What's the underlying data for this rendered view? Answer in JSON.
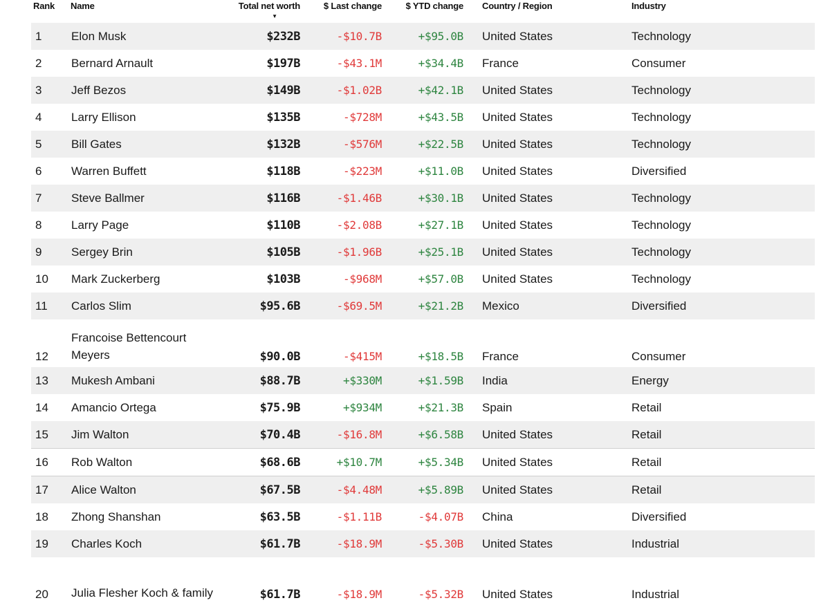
{
  "header": {
    "rank": "Rank",
    "name": "Name",
    "net_worth": "Total net worth",
    "sort_indicator": "▼",
    "last_change": "$ Last change",
    "ytd_change": "$ YTD change",
    "country": "Country / Region",
    "industry": "Industry"
  },
  "colors": {
    "negative": "#e03a3a",
    "positive": "#2e8540",
    "stripe": "#efefef"
  },
  "rows": [
    {
      "rank": "1",
      "name": "Elon Musk",
      "net_worth": "$232B",
      "last_change": "-$10.7B",
      "ytd_change": "+$95.0B",
      "country": "United States",
      "industry": "Technology"
    },
    {
      "rank": "2",
      "name": "Bernard Arnault",
      "net_worth": "$197B",
      "last_change": "-$43.1M",
      "ytd_change": "+$34.4B",
      "country": "France",
      "industry": "Consumer"
    },
    {
      "rank": "3",
      "name": "Jeff Bezos",
      "net_worth": "$149B",
      "last_change": "-$1.02B",
      "ytd_change": "+$42.1B",
      "country": "United States",
      "industry": "Technology"
    },
    {
      "rank": "4",
      "name": "Larry Ellison",
      "net_worth": "$135B",
      "last_change": "-$728M",
      "ytd_change": "+$43.5B",
      "country": "United States",
      "industry": "Technology"
    },
    {
      "rank": "5",
      "name": "Bill Gates",
      "net_worth": "$132B",
      "last_change": "-$576M",
      "ytd_change": "+$22.5B",
      "country": "United States",
      "industry": "Technology"
    },
    {
      "rank": "6",
      "name": "Warren Buffett",
      "net_worth": "$118B",
      "last_change": "-$223M",
      "ytd_change": "+$11.0B",
      "country": "United States",
      "industry": "Diversified"
    },
    {
      "rank": "7",
      "name": "Steve Ballmer",
      "net_worth": "$116B",
      "last_change": "-$1.46B",
      "ytd_change": "+$30.1B",
      "country": "United States",
      "industry": "Technology"
    },
    {
      "rank": "8",
      "name": "Larry Page",
      "net_worth": "$110B",
      "last_change": "-$2.08B",
      "ytd_change": "+$27.1B",
      "country": "United States",
      "industry": "Technology"
    },
    {
      "rank": "9",
      "name": "Sergey Brin",
      "net_worth": "$105B",
      "last_change": "-$1.96B",
      "ytd_change": "+$25.1B",
      "country": "United States",
      "industry": "Technology"
    },
    {
      "rank": "10",
      "name": "Mark Zuckerberg",
      "net_worth": "$103B",
      "last_change": "-$968M",
      "ytd_change": "+$57.0B",
      "country": "United States",
      "industry": "Technology"
    },
    {
      "rank": "11",
      "name": "Carlos Slim",
      "net_worth": "$95.6B",
      "last_change": "-$69.5M",
      "ytd_change": "+$21.2B",
      "country": "Mexico",
      "industry": "Diversified"
    },
    {
      "rank": "12",
      "name": "Francoise Bettencourt Meyers",
      "net_worth": "$90.0B",
      "last_change": "-$415M",
      "ytd_change": "+$18.5B",
      "country": "France",
      "industry": "Consumer"
    },
    {
      "rank": "13",
      "name": "Mukesh Ambani",
      "net_worth": "$88.7B",
      "last_change": "+$330M",
      "ytd_change": "+$1.59B",
      "country": "India",
      "industry": "Energy"
    },
    {
      "rank": "14",
      "name": "Amancio Ortega",
      "net_worth": "$75.9B",
      "last_change": "+$934M",
      "ytd_change": "+$21.3B",
      "country": "Spain",
      "industry": "Retail"
    },
    {
      "rank": "15",
      "name": "Jim Walton",
      "net_worth": "$70.4B",
      "last_change": "-$16.8M",
      "ytd_change": "+$6.58B",
      "country": "United States",
      "industry": "Retail"
    },
    {
      "rank": "16",
      "name": "Rob Walton",
      "net_worth": "$68.6B",
      "last_change": "+$10.7M",
      "ytd_change": "+$5.34B",
      "country": "United States",
      "industry": "Retail"
    },
    {
      "rank": "17",
      "name": "Alice Walton",
      "net_worth": "$67.5B",
      "last_change": "-$4.48M",
      "ytd_change": "+$5.89B",
      "country": "United States",
      "industry": "Retail"
    },
    {
      "rank": "18",
      "name": "Zhong Shanshan",
      "net_worth": "$63.5B",
      "last_change": "-$1.11B",
      "ytd_change": "-$4.07B",
      "country": "China",
      "industry": "Diversified"
    },
    {
      "rank": "19",
      "name": "Charles Koch",
      "net_worth": "$61.7B",
      "last_change": "-$18.9M",
      "ytd_change": "-$5.30B",
      "country": "United States",
      "industry": "Industrial"
    },
    {
      "rank": "20",
      "name": "Julia Flesher Koch & family",
      "net_worth": "$61.7B",
      "last_change": "-$18.9M",
      "ytd_change": "-$5.32B",
      "country": "United States",
      "industry": "Industrial"
    }
  ]
}
